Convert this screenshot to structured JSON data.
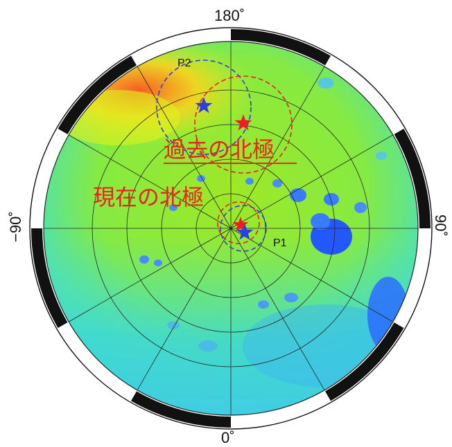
{
  "map": {
    "projection": "polar",
    "longitude_labels": {
      "top": "180˚",
      "bottom": "0˚",
      "left": "−90˚",
      "right": "90˚"
    },
    "ocean_colors": {
      "high": "#ff4a1a",
      "upper": "#ffe820",
      "mid": "#a8f025",
      "low": "#35dcd0",
      "lowest": "#2060ff"
    },
    "annotations": {
      "past_pole_label": "過去の北極",
      "present_pole_label": "現在の北極",
      "past_label_color": "#e8251f",
      "present_label_color": "#e8251f"
    },
    "points": [
      {
        "name": "P2",
        "label": "P2",
        "color": "#2c3fe0"
      },
      {
        "name": "P1",
        "label": "P1",
        "color": "#2c3fe0"
      }
    ],
    "marker_colors": {
      "red_star": "#ee1c24",
      "blue_star": "#2c3fe0",
      "red_circle": "#ee1c24",
      "blue_circle": "#2c3fe0"
    }
  }
}
